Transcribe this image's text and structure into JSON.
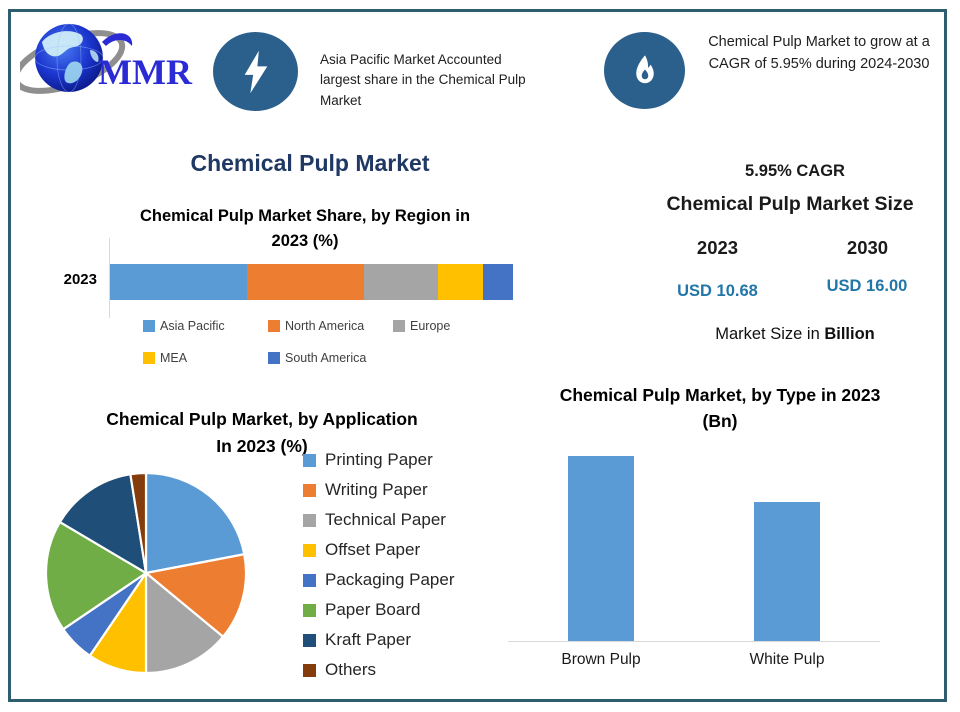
{
  "logo": {
    "text": "MMR"
  },
  "header": {
    "highlight_left": "Asia Pacific Market Accounted largest share in the Chemical Pulp Market",
    "highlight_right": "Chemical Pulp Market to grow at a CAGR of 5.95% during 2024-2030"
  },
  "main_title": "Chemical Pulp Market",
  "stats": {
    "cagr": "5.95% CAGR",
    "market_size_title": "Chemical Pulp Market Size",
    "year_start": "2023",
    "year_end": "2030",
    "value_start": "USD 10.68",
    "value_end": "USD 16.00",
    "note_prefix": "Market Size in ",
    "note_bold": "Billion"
  },
  "theme": {
    "border_color": "#2F5D70",
    "icon_bg_color": "#2B5F8C",
    "main_title_color": "#1F3864",
    "accent_teal": "#2276A8",
    "logo_blue": "#2B2BD5"
  },
  "chart_data": [
    {
      "type": "bar",
      "variant": "stacked-horizontal",
      "title": "Chemical Pulp Market Share, by Region in 2023 (%)",
      "title_lines": [
        "Chemical Pulp Market Share, by Region in",
        "2023 (%)"
      ],
      "categories": [
        "2023"
      ],
      "series": [
        {
          "name": "Asia Pacific",
          "values": [
            34
          ],
          "color": "#5B9BD5"
        },
        {
          "name": "North America",
          "values": [
            29
          ],
          "color": "#ED7D31"
        },
        {
          "name": "Europe",
          "values": [
            18.5
          ],
          "color": "#A5A5A5"
        },
        {
          "name": "MEA",
          "values": [
            11
          ],
          "color": "#FFC000"
        },
        {
          "name": "South America",
          "values": [
            7.5
          ],
          "color": "#4472C4"
        }
      ],
      "xlim": [
        0,
        100
      ],
      "unit": "%",
      "legend_position": "bottom",
      "grid": false
    },
    {
      "type": "pie",
      "title": "Chemical Pulp Market, by Application In 2023 (%)",
      "title_lines": [
        "Chemical Pulp Market, by Application",
        "In 2023 (%)"
      ],
      "labels": [
        "Printing Paper",
        "Writing Paper",
        "Technical Paper",
        "Offset Paper",
        "Packaging Paper",
        "Paper Board",
        "Kraft Paper",
        "Others"
      ],
      "values": [
        22,
        14,
        14,
        9.5,
        6,
        18,
        14,
        2.5
      ],
      "colors": [
        "#5B9BD5",
        "#ED7D31",
        "#A5A5A5",
        "#FFC000",
        "#4472C4",
        "#70AD47",
        "#1F4E79",
        "#843C0C"
      ],
      "start_angle_deg": 0,
      "unit": "%",
      "legend_position": "right"
    },
    {
      "type": "bar",
      "title": "Chemical Pulp Market, by Type in 2023 (Bn)",
      "title_lines": [
        "Chemical Pulp Market, by Type in 2023",
        "(Bn)"
      ],
      "categories": [
        "Brown Pulp",
        "White Pulp"
      ],
      "values": [
        6.1,
        4.6
      ],
      "color": "#5B9BD5",
      "ylim": [
        0,
        6.5
      ],
      "unit": "Bn",
      "grid": false,
      "legend_position": "none"
    }
  ]
}
